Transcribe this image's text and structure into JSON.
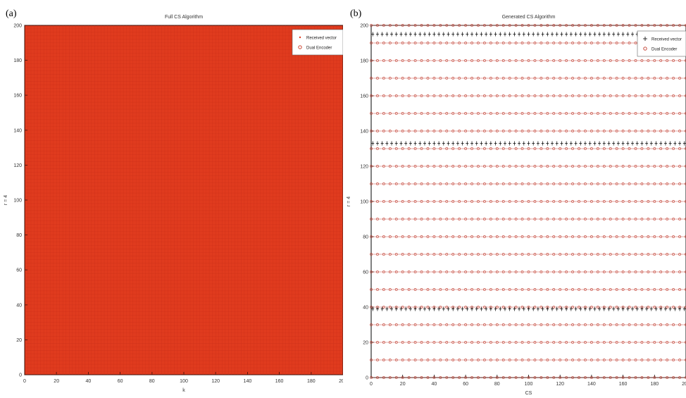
{
  "panels": [
    "(a)",
    "(b)"
  ],
  "chart_data": [
    {
      "type": "scatter",
      "title": "Full CS Algorithm",
      "xlabel": "k",
      "ylabel": "r = 4",
      "x_ticks": [
        "0",
        "20",
        "40",
        "60",
        "80",
        "100",
        "120",
        "140",
        "160",
        "180",
        "200"
      ],
      "y_ticks": [
        "0",
        "20",
        "40",
        "60",
        "80",
        "100",
        "120",
        "140",
        "160",
        "180",
        "200"
      ],
      "xlim": [
        0,
        200
      ],
      "ylim": [
        0,
        200
      ],
      "grid": true,
      "legend_position": "top-right",
      "series": [
        {
          "name": "Received vector",
          "color": "#e03b1e",
          "marker": "dot",
          "pattern": "full grid"
        },
        {
          "name": "Dual Encoder",
          "color": "#c8301a",
          "marker": "circle",
          "pattern": "full grid"
        }
      ]
    },
    {
      "type": "scatter",
      "title": "Generated CS Algorithm",
      "xlabel": "CS",
      "ylabel": "r = 4",
      "x_ticks": [
        "0",
        "20",
        "40",
        "60",
        "80",
        "100",
        "120",
        "140",
        "160",
        "180",
        "200"
      ],
      "y_ticks": [
        "0",
        "20",
        "40",
        "60",
        "80",
        "100",
        "120",
        "140",
        "160",
        "180",
        "200"
      ],
      "xlim": [
        0,
        200
      ],
      "ylim": [
        0,
        200
      ],
      "grid": false,
      "legend_position": "top-right",
      "series": [
        {
          "name": "Received vector",
          "color": "#000000",
          "marker": "plus",
          "rows_y": [
            195,
            133,
            39
          ]
        },
        {
          "name": "Dual Encoder",
          "color": "#c0392b",
          "marker": "circle",
          "rows_y": [
            200,
            190,
            180,
            170,
            160,
            150,
            140,
            130,
            120,
            110,
            100,
            90,
            80,
            70,
            60,
            50,
            40,
            30,
            20,
            10,
            0
          ]
        }
      ]
    }
  ]
}
